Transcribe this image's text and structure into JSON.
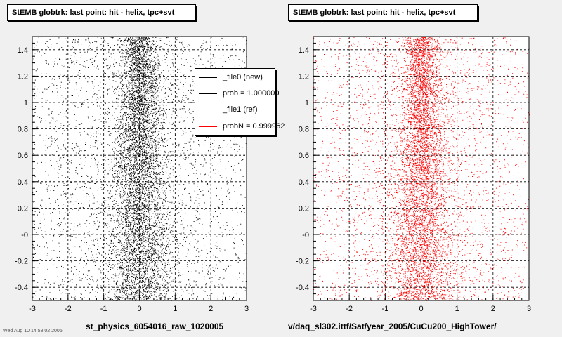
{
  "panels": [
    {
      "title": "StEMB globtrk: last point: hit - helix, tpc+svt",
      "xfooter": "st_physics_6054016_raw_1020005",
      "color": "#000000"
    },
    {
      "title": "StEMB globtrk: last point: hit - helix, tpc+svt",
      "xfooter": "v/daq_sl302.ittf/Sat/year_2005/CuCu200_HighTower/",
      "color": "#ff0000"
    }
  ],
  "legend": {
    "items": [
      {
        "label": "_file0 (new)",
        "color": "#000000"
      },
      {
        "label": "prob = 1.000000",
        "color": "#000000"
      },
      {
        "label": "_file1 (ref)",
        "color": "#ff0000"
      },
      {
        "label": "probN = 0.999962",
        "color": "#ff0000"
      }
    ]
  },
  "chart_data": [
    {
      "type": "scatter",
      "title": "StEMB globtrk: last point: hit - helix, tpc+svt",
      "xlim": [
        -3,
        3
      ],
      "ylim": [
        -0.5,
        1.5
      ],
      "xticks": [
        "-3",
        "-2",
        "-1",
        "0",
        "1",
        "2",
        "3"
      ],
      "yticks": [
        "-0.4",
        "-0.2",
        "-0",
        "0.2",
        "0.4",
        "0.6",
        "0.8",
        "1",
        "1.2",
        "1.4"
      ],
      "grid": true,
      "legend_position": "top-right",
      "series": [
        {
          "name": "_file0 (new)",
          "color": "#000000",
          "density_center_x": 0.0,
          "approx_points": 9000
        }
      ]
    },
    {
      "type": "scatter",
      "title": "StEMB globtrk: last point: hit - helix, tpc+svt",
      "xlim": [
        -3,
        3
      ],
      "ylim": [
        -0.5,
        1.5
      ],
      "xticks": [
        "-3",
        "-2",
        "-1",
        "0",
        "1",
        "2",
        "3"
      ],
      "yticks": [
        "-0.4",
        "-0.2",
        "-0",
        "0.2",
        "0.4",
        "0.6",
        "0.8",
        "1",
        "1.2",
        "1.4"
      ],
      "grid": true,
      "series": [
        {
          "name": "_file1 (ref)",
          "color": "#ff0000",
          "density_center_x": 0.0,
          "approx_points": 9000
        }
      ]
    }
  ],
  "footnote": "Wed Aug 10 14:58:02 2005"
}
